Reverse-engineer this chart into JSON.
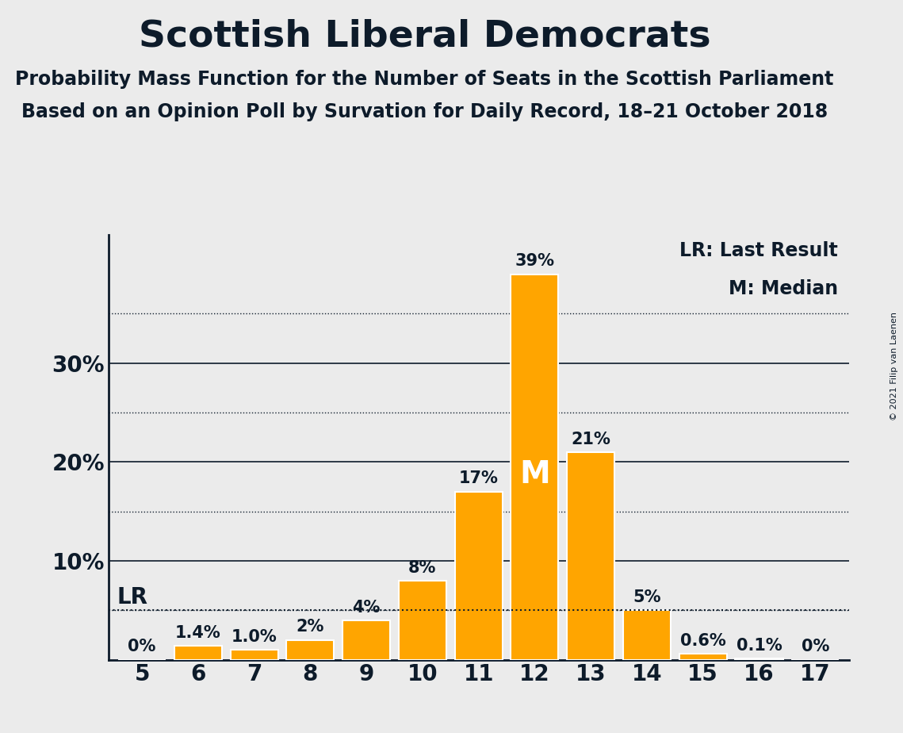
{
  "title": "Scottish Liberal Democrats",
  "subtitle1": "Probability Mass Function for the Number of Seats in the Scottish Parliament",
  "subtitle2": "Based on an Opinion Poll by Survation for Daily Record, 18–21 October 2018",
  "copyright": "© 2021 Filip van Laenen",
  "seats": [
    5,
    6,
    7,
    8,
    9,
    10,
    11,
    12,
    13,
    14,
    15,
    16,
    17
  ],
  "probabilities": [
    0.0,
    1.4,
    1.0,
    2.0,
    4.0,
    8.0,
    17.0,
    39.0,
    21.0,
    5.0,
    0.6,
    0.1,
    0.0
  ],
  "bar_labels": [
    "0%",
    "1.4%",
    "1.0%",
    "2%",
    "4%",
    "8%",
    "17%",
    "39%",
    "21%",
    "5%",
    "0.6%",
    "0.1%",
    "0%"
  ],
  "bar_color": "#FFA500",
  "bar_edge_color": "#FFFFFF",
  "background_color": "#EBEBEB",
  "axis_color": "#0D1B2A",
  "lr_value": 5.0,
  "median_seat": 12,
  "yticks": [
    10,
    20,
    30
  ],
  "dotted_lines": [
    5,
    15,
    25,
    35
  ],
  "ylim": [
    0,
    43
  ],
  "xlim": [
    4.4,
    17.6
  ],
  "legend_lr": "LR: Last Result",
  "legend_m": "M: Median",
  "title_fontsize": 34,
  "subtitle_fontsize": 17,
  "tick_fontsize": 20,
  "bar_label_fontsize": 15,
  "legend_fontsize": 17,
  "lr_label_fontsize": 20,
  "m_label_fontsize": 28
}
